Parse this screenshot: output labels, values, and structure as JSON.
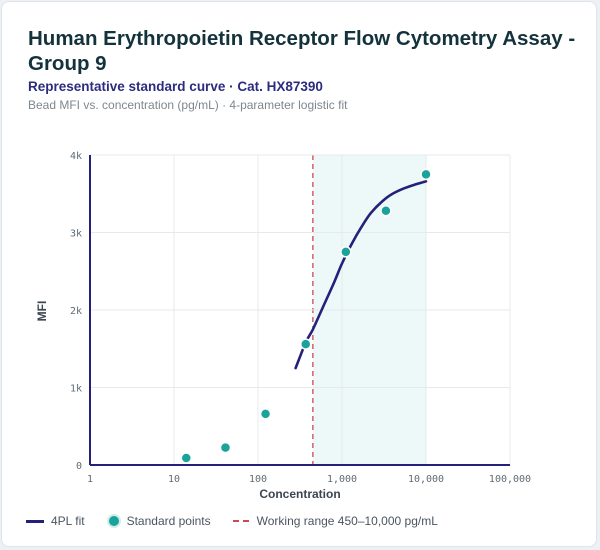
{
  "header": {
    "title": "Human Erythropoietin Receptor Flow Cytometry Assay - Group 9",
    "subtitle": "Representative standard curve · Cat. HX87390",
    "caption": "Bead MFI vs. concentration (pg/mL) · 4-parameter logistic fit"
  },
  "colors": {
    "fit_line": "#24217a",
    "points": "#1aa39a",
    "working_range_line": "#d0474f",
    "working_range_fill": "#e8f6f6"
  },
  "chart_data": {
    "type": "scatter",
    "xlabel": "Concentration",
    "ylabel": "MFI",
    "x_scale": "log",
    "xlim": [
      1,
      100000
    ],
    "ylim": [
      0,
      4000
    ],
    "x_ticks": [
      {
        "value": 1,
        "label": "1"
      },
      {
        "value": 10,
        "label": "10"
      },
      {
        "value": 100,
        "label": "100"
      },
      {
        "value": 1000,
        "label": "1,000"
      },
      {
        "value": 10000,
        "label": "10,000"
      },
      {
        "value": 100000,
        "label": "100,000"
      }
    ],
    "y_ticks": [
      {
        "value": 0,
        "label": "0"
      },
      {
        "value": 1000,
        "label": "1k"
      },
      {
        "value": 2000,
        "label": "2k"
      },
      {
        "value": 3000,
        "label": "3k"
      },
      {
        "value": 4000,
        "label": "4k"
      }
    ],
    "grid": true,
    "series": [
      {
        "name": "Standard points",
        "type": "scatter",
        "points": [
          {
            "x": 14,
            "y": 90
          },
          {
            "x": 41,
            "y": 225
          },
          {
            "x": 123,
            "y": 660
          },
          {
            "x": 370,
            "y": 1560
          },
          {
            "x": 1111,
            "y": 2750
          },
          {
            "x": 3333,
            "y": 3280
          },
          {
            "x": 10000,
            "y": 3750
          }
        ]
      },
      {
        "name": "4PL fit",
        "type": "line",
        "points": [
          {
            "x": 280,
            "y": 1250
          },
          {
            "x": 370,
            "y": 1580
          },
          {
            "x": 450,
            "y": 1750
          },
          {
            "x": 600,
            "y": 2050
          },
          {
            "x": 800,
            "y": 2350
          },
          {
            "x": 1000,
            "y": 2600
          },
          {
            "x": 1300,
            "y": 2850
          },
          {
            "x": 1700,
            "y": 3070
          },
          {
            "x": 2200,
            "y": 3250
          },
          {
            "x": 3000,
            "y": 3400
          },
          {
            "x": 4000,
            "y": 3500
          },
          {
            "x": 5500,
            "y": 3570
          },
          {
            "x": 7500,
            "y": 3620
          },
          {
            "x": 10000,
            "y": 3660
          }
        ]
      }
    ],
    "working_range": {
      "min": 450,
      "max": 10000,
      "label": "Working range 450–10,000 pg/mL"
    },
    "legend": {
      "placement": "bottom",
      "fit_label": "4PL fit",
      "points_label": "Standard points",
      "range_label": "Working range 450–10,000 pg/mL"
    }
  }
}
